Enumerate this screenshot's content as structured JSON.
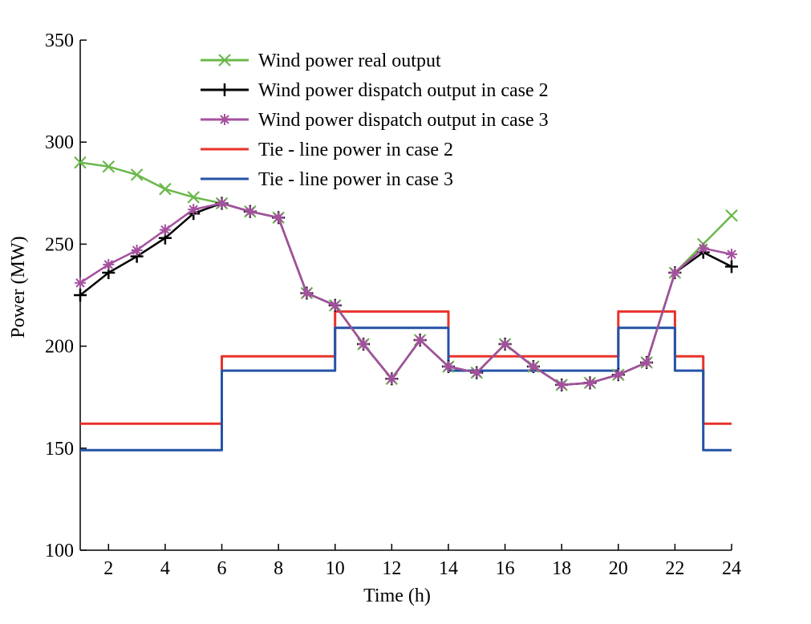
{
  "chart_data": {
    "type": "line",
    "xlabel": "Time (h)",
    "ylabel": "Power (MW)",
    "xlim": [
      1,
      24
    ],
    "ylim": [
      100,
      350
    ],
    "xticks": [
      2,
      4,
      6,
      8,
      10,
      12,
      14,
      16,
      18,
      20,
      22,
      24
    ],
    "yticks": [
      100,
      150,
      200,
      250,
      300,
      350
    ],
    "legend_position": "top-center",
    "grid": false,
    "series": [
      {
        "name": "Wind power real output",
        "color": "#6ab84a",
        "marker": "x",
        "x": [
          1,
          2,
          3,
          4,
          5,
          6,
          7,
          8,
          9,
          10,
          11,
          12,
          13,
          14,
          15,
          16,
          17,
          18,
          19,
          20,
          21,
          22,
          23,
          24
        ],
        "values": [
          290,
          288,
          284,
          277,
          273,
          270,
          266,
          263,
          226,
          220,
          201,
          184,
          203,
          190,
          187,
          201,
          190,
          181,
          182,
          186,
          192,
          236,
          250,
          264
        ]
      },
      {
        "name": "Wind power dispatch output in case 2",
        "color": "#000000",
        "marker": "plus",
        "x": [
          1,
          2,
          3,
          4,
          5,
          6,
          7,
          8,
          9,
          10,
          11,
          12,
          13,
          14,
          15,
          16,
          17,
          18,
          19,
          20,
          21,
          22,
          23,
          24
        ],
        "values": [
          225,
          236,
          244,
          253,
          265,
          270,
          266,
          263,
          226,
          220,
          201,
          184,
          203,
          190,
          187,
          201,
          190,
          181,
          182,
          186,
          192,
          236,
          246,
          239
        ]
      },
      {
        "name": "Wind power dispatch output in case 3",
        "color": "#a5519f",
        "marker": "asterisk",
        "x": [
          1,
          2,
          3,
          4,
          5,
          6,
          7,
          8,
          9,
          10,
          11,
          12,
          13,
          14,
          15,
          16,
          17,
          18,
          19,
          20,
          21,
          22,
          23,
          24
        ],
        "values": [
          231,
          240,
          247,
          257,
          267,
          270,
          266,
          263,
          226,
          220,
          201,
          184,
          203,
          190,
          187,
          201,
          190,
          181,
          182,
          186,
          192,
          236,
          248,
          245
        ]
      },
      {
        "name": "Tie - line power in case 2",
        "color": "#e8332a",
        "marker": "none",
        "step": true,
        "x": [
          1,
          6,
          6,
          10,
          10,
          14,
          14,
          20,
          20,
          22,
          22,
          23,
          23,
          24
        ],
        "values": [
          162,
          162,
          195,
          195,
          217,
          217,
          195,
          195,
          217,
          217,
          195,
          195,
          162,
          162
        ]
      },
      {
        "name": "Tie - line power in case 3",
        "color": "#2453a6",
        "marker": "none",
        "step": true,
        "x": [
          1,
          6,
          6,
          10,
          10,
          14,
          14,
          20,
          20,
          22,
          22,
          23,
          23,
          24
        ],
        "values": [
          149,
          149,
          188,
          188,
          209,
          209,
          188,
          188,
          209,
          209,
          188,
          188,
          149,
          149
        ]
      }
    ]
  }
}
